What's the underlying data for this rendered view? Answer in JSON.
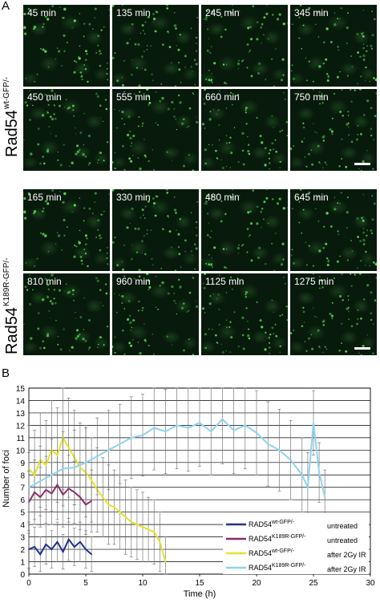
{
  "panel_a": {
    "letter": "A",
    "block1": {
      "label_main": "Rad54",
      "label_sup": "wt-GFP/-",
      "times": [
        "45 min",
        "135 min",
        "245 min",
        "345 min",
        "450 min",
        "555 min",
        "660 min",
        "750 min"
      ]
    },
    "block2": {
      "label_main": "Rad54",
      "label_sup": "K189R-GFP/-",
      "times": [
        "165 min",
        "330 min",
        "480 min",
        "645 min",
        "810 min",
        "960 min",
        "1125 min",
        "1275 min"
      ]
    }
  },
  "panel_b": {
    "letter": "B"
  },
  "chart_data": {
    "type": "line",
    "xlabel": "Time (h)",
    "ylabel": "Number of foci",
    "xlim": [
      0,
      30
    ],
    "ylim": [
      0,
      15
    ],
    "xticks": [
      0,
      5,
      10,
      15,
      20,
      25,
      30
    ],
    "yticks": [
      0,
      1,
      2,
      3,
      4,
      5,
      6,
      7,
      8,
      9,
      10,
      11,
      12,
      13,
      14,
      15
    ],
    "grid": "horizontal",
    "legend_position": "bottom-right",
    "series": [
      {
        "name_base": "RAD54",
        "name_sup": "wt-GFP/-",
        "condition": "untreated",
        "color": "#1f2f8f",
        "x": [
          0,
          0.5,
          1,
          1.5,
          2,
          2.5,
          3,
          3.5,
          4,
          4.5,
          5,
          5.5
        ],
        "y": [
          2.0,
          2.2,
          1.6,
          2.4,
          2.0,
          2.6,
          1.8,
          2.8,
          2.2,
          2.6,
          2.0,
          1.6
        ],
        "err": [
          1.5,
          1.6,
          1.4,
          1.6,
          1.5,
          1.6,
          1.4,
          1.7,
          1.5,
          1.6,
          1.5,
          1.4
        ]
      },
      {
        "name_base": "RAD54",
        "name_sup": "K189R-GFP/-",
        "condition": "untreated",
        "color": "#8b2a6b",
        "x": [
          0,
          0.5,
          1,
          1.5,
          2,
          2.5,
          3,
          3.5,
          4,
          4.5,
          5,
          5.5
        ],
        "y": [
          5.8,
          6.6,
          6.2,
          6.8,
          6.5,
          7.2,
          6.4,
          6.9,
          6.6,
          6.2,
          5.6,
          5.9
        ],
        "err": [
          2.5,
          2.6,
          2.4,
          2.7,
          2.5,
          2.8,
          2.6,
          2.7,
          2.5,
          2.6,
          2.4,
          2.5
        ]
      },
      {
        "name_base": "RAD54",
        "name_sup": "wt-GFP/-",
        "condition": "after  2Gy IR",
        "color": "#e6e22a",
        "x": [
          0,
          0.5,
          1,
          1.5,
          2,
          2.5,
          3,
          3.5,
          4,
          4.5,
          5,
          5.5,
          6,
          6.5,
          7,
          7.5,
          8,
          8.5,
          9,
          9.5,
          10,
          10.5,
          11,
          11.5,
          12
        ],
        "y": [
          8.5,
          8.0,
          9.2,
          8.8,
          10.0,
          9.6,
          11.0,
          10.2,
          9.4,
          8.6,
          8.2,
          7.6,
          6.8,
          6.2,
          5.6,
          5.4,
          5.0,
          4.6,
          4.2,
          4.0,
          3.8,
          3.6,
          3.4,
          2.6,
          1.0
        ],
        "err": [
          3.5,
          3.6,
          3.8,
          3.6,
          4.0,
          3.8,
          4.2,
          4.0,
          3.8,
          3.6,
          3.6,
          3.4,
          3.4,
          3.2,
          3.2,
          3.0,
          3.0,
          3.0,
          2.8,
          2.8,
          2.8,
          2.6,
          2.6,
          2.4,
          2.0
        ]
      },
      {
        "name_base": "RAD54",
        "name_sup": "K189R-GFP/-",
        "condition": "after  2Gy IR",
        "color": "#8fd3ee",
        "x": [
          0,
          1,
          2,
          3,
          4,
          5,
          6,
          7,
          8,
          9,
          10,
          11,
          12,
          13,
          14,
          15,
          16,
          17,
          18,
          19,
          20,
          21,
          22,
          23,
          24,
          24.5,
          25,
          25.5,
          26
        ],
        "y": [
          7.0,
          7.5,
          8.0,
          8.5,
          8.6,
          9.0,
          9.5,
          10.0,
          10.5,
          11.0,
          11.2,
          11.8,
          11.5,
          12.0,
          11.8,
          12.2,
          11.5,
          12.5,
          11.6,
          12.0,
          11.4,
          10.5,
          10.0,
          9.2,
          8.0,
          7.0,
          12.2,
          8.2,
          6.2
        ],
        "err": [
          2.8,
          2.8,
          2.9,
          3.0,
          3.0,
          3.0,
          3.1,
          3.2,
          3.2,
          3.3,
          3.3,
          3.4,
          3.4,
          3.5,
          3.5,
          3.5,
          3.5,
          3.6,
          3.5,
          3.5,
          3.4,
          3.4,
          3.3,
          3.2,
          3.0,
          2.8,
          2.6,
          2.4,
          2.2
        ]
      }
    ]
  }
}
